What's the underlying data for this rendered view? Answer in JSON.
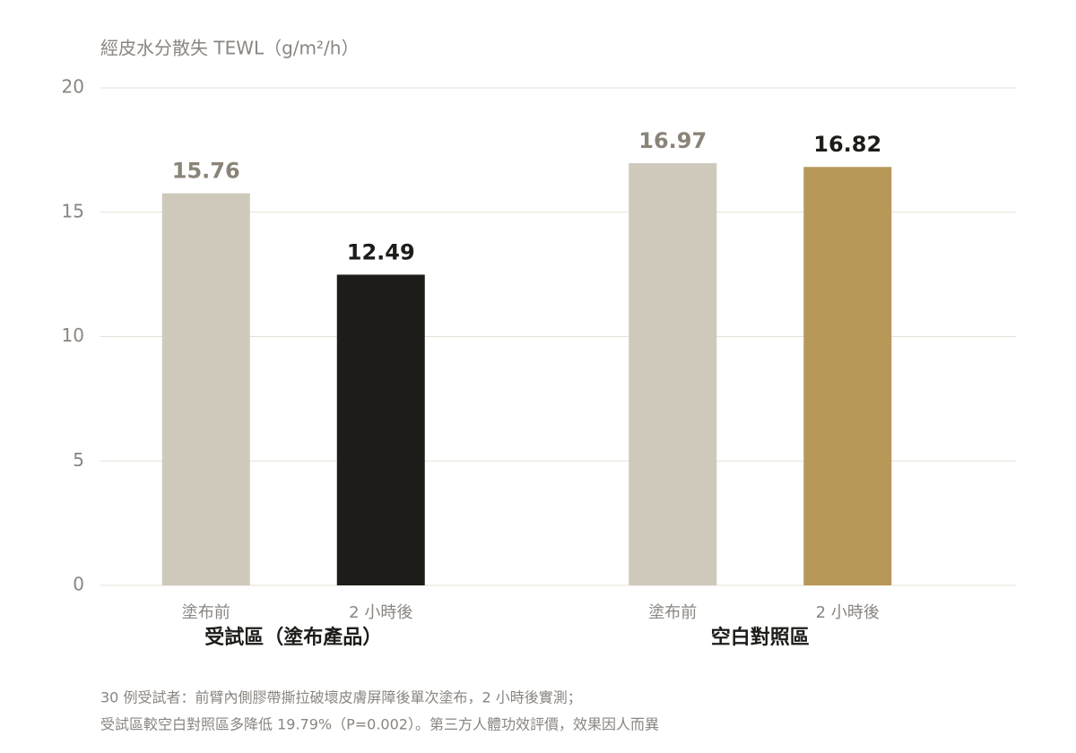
{
  "chart_data": {
    "type": "grouped-bar",
    "y_label": "經皮水分散失 TEWL（g/m²/h）",
    "groups": [
      {
        "name": "受試區（塗布產品）",
        "categories": [
          "塗布前",
          "2 小時後"
        ],
        "values": [
          15.76,
          12.49
        ],
        "colors": [
          "#cfc9bb",
          "#1e1c19"
        ],
        "value_label_colors": [
          "#8a8478",
          "#1e1c19"
        ]
      },
      {
        "name": "空白對照區",
        "categories": [
          "塗布前",
          "2 小時後"
        ],
        "values": [
          16.97,
          16.82
        ],
        "colors": [
          "#cfc9bb",
          "#b79858"
        ],
        "value_label_colors": [
          "#8a8478",
          "#1e1c19"
        ]
      }
    ],
    "ylim": [
      0,
      20
    ],
    "yticks": [
      0,
      5,
      10,
      15,
      20
    ],
    "grid": true,
    "footnote": [
      "30 例受試者：前臂內側膠帶撕拉破壞皮膚屏障後單次塗布，2 小時後實測；",
      "受試區較空白對照區多降低 19.79%（P=0.002）。第三方人體功效評價，效果因人而異"
    ]
  }
}
